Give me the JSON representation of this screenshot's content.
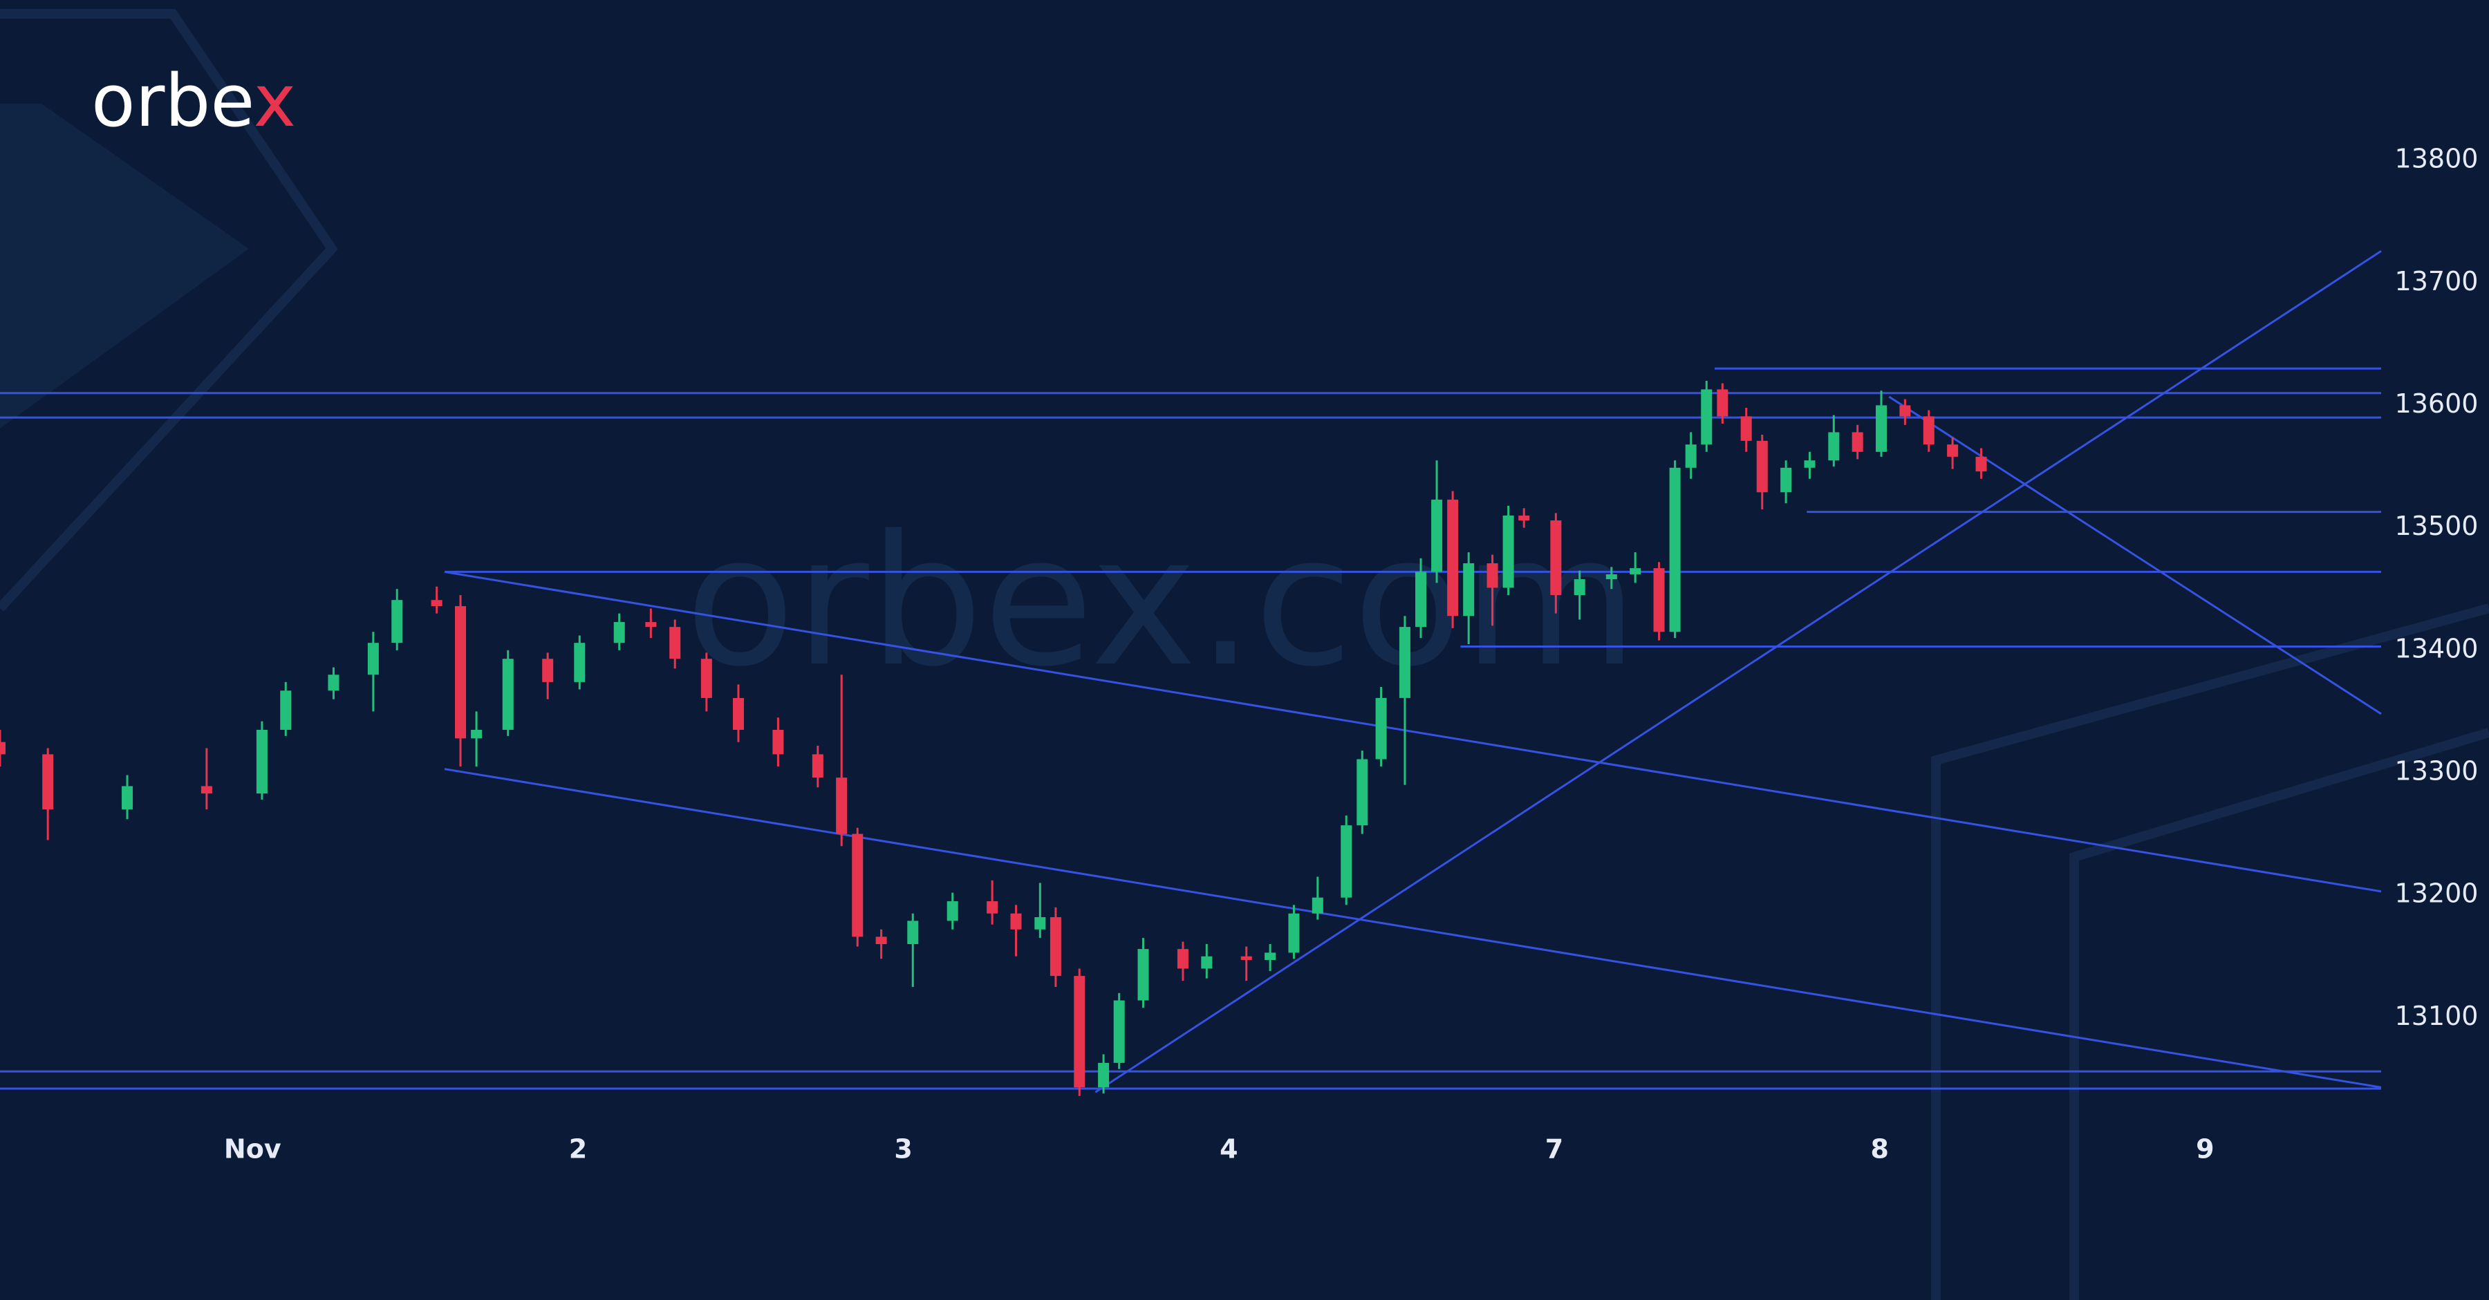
{
  "logo": {
    "text": "orbe",
    "accent": "x"
  },
  "watermark": "orbex.com",
  "chart_data": {
    "type": "candlestick",
    "x": [
      -0.776,
      -0.629,
      -0.385,
      -0.141,
      0.029,
      0.102,
      0.249,
      0.371,
      0.444,
      0.566,
      0.639,
      0.688,
      0.785,
      0.907,
      1.005,
      1.127,
      1.224,
      1.298,
      1.395,
      1.493,
      1.615,
      1.737,
      1.81,
      1.859,
      1.932,
      2.029,
      2.151,
      2.273,
      2.346,
      2.42,
      2.468,
      2.541,
      2.615,
      2.663,
      2.737,
      2.859,
      2.932,
      3.054,
      3.127,
      3.2,
      3.273,
      3.361,
      3.41,
      3.468,
      3.541,
      3.59,
      3.639,
      3.688,
      3.737,
      3.81,
      3.859,
      3.907,
      4.005,
      4.078,
      4.176,
      4.249,
      4.322,
      4.371,
      4.42,
      4.468,
      4.517,
      4.59,
      4.639,
      4.712,
      4.785,
      4.859,
      4.932,
      5.005,
      5.078,
      5.151,
      5.224,
      5.312
    ],
    "open": [
      13325,
      13315,
      13270,
      13289,
      13283,
      13335,
      13367,
      13380,
      13406,
      13441,
      13436,
      13328,
      13335,
      13393,
      13374,
      13406,
      13423,
      13419,
      13393,
      13361,
      13335,
      13315,
      13296,
      13250,
      13166,
      13160,
      13179,
      13195,
      13185,
      13172,
      13182,
      13134,
      13043,
      13063,
      13114,
      13156,
      13140,
      13150,
      13147,
      13153,
      13185,
      13198,
      13257,
      13311,
      13361,
      13419,
      13464,
      13523,
      13428,
      13471,
      13451,
      13510,
      13506,
      13445,
      13458,
      13462,
      13467,
      13415,
      13549,
      13568,
      13613,
      13591,
      13571,
      13529,
      13549,
      13555,
      13578,
      13562,
      13600,
      13591,
      13568,
      13558
    ],
    "high": [
      13335,
      13320,
      13298,
      13320,
      13342,
      13374,
      13386,
      13415,
      13450,
      13452,
      13445,
      13350,
      13400,
      13398,
      13412,
      13430,
      13434,
      13425,
      13398,
      13372,
      13345,
      13322,
      13380,
      13255,
      13172,
      13185,
      13202,
      13212,
      13192,
      13210,
      13190,
      13140,
      13070,
      13120,
      13165,
      13162,
      13160,
      13158,
      13160,
      13192,
      13215,
      13265,
      13318,
      13370,
      13428,
      13475,
      13555,
      13530,
      13480,
      13478,
      13518,
      13516,
      13512,
      13465,
      13468,
      13480,
      13472,
      13555,
      13578,
      13620,
      13618,
      13598,
      13576,
      13555,
      13562,
      13592,
      13584,
      13612,
      13605,
      13596,
      13574,
      13565
    ],
    "low": [
      13305,
      13245,
      13262,
      13270,
      13278,
      13330,
      13360,
      13350,
      13400,
      13430,
      13305,
      13305,
      13330,
      13360,
      13368,
      13400,
      13410,
      13385,
      13350,
      13325,
      13305,
      13288,
      13240,
      13158,
      13148,
      13125,
      13172,
      13176,
      13150,
      13165,
      13125,
      13036,
      13038,
      13058,
      13108,
      13130,
      13132,
      13130,
      13138,
      13148,
      13180,
      13192,
      13250,
      13305,
      13290,
      13410,
      13455,
      13418,
      13405,
      13420,
      13445,
      13500,
      13430,
      13425,
      13450,
      13455,
      13408,
      13410,
      13540,
      13562,
      13585,
      13562,
      13515,
      13520,
      13540,
      13550,
      13556,
      13558,
      13584,
      13562,
      13548,
      13540
    ],
    "close": [
      13315,
      13270,
      13289,
      13283,
      13335,
      13367,
      13380,
      13406,
      13441,
      13436,
      13328,
      13335,
      13393,
      13374,
      13406,
      13423,
      13419,
      13393,
      13361,
      13335,
      13315,
      13296,
      13250,
      13166,
      13160,
      13179,
      13195,
      13185,
      13172,
      13182,
      13134,
      13043,
      13063,
      13114,
      13156,
      13140,
      13150,
      13147,
      13153,
      13185,
      13198,
      13257,
      13311,
      13361,
      13419,
      13464,
      13523,
      13428,
      13471,
      13451,
      13510,
      13506,
      13445,
      13458,
      13462,
      13467,
      13415,
      13549,
      13568,
      13613,
      13591,
      13571,
      13529,
      13549,
      13555,
      13578,
      13562,
      13600,
      13591,
      13568,
      13558,
      13546
    ],
    "up_color": "#22c07a",
    "down_color": "#e8344e",
    "line_color": "#3552e0",
    "lines": [
      {
        "x": [
          -0.776,
          6.541
        ],
        "y": [
          13610,
          13610
        ]
      },
      {
        "x": [
          -0.776,
          6.541
        ],
        "y": [
          13590,
          13590
        ]
      },
      {
        "x": [
          4.493,
          6.541
        ],
        "y": [
          13630,
          13630
        ]
      },
      {
        "x": [
          4.776,
          6.541
        ],
        "y": [
          13513,
          13513
        ]
      },
      {
        "x": [
          0.59,
          6.541
        ],
        "y": [
          13464,
          13464
        ]
      },
      {
        "x": [
          3.712,
          6.541
        ],
        "y": [
          13403,
          13403
        ]
      },
      {
        "x": [
          -0.776,
          6.541
        ],
        "y": [
          13056,
          13056
        ]
      },
      {
        "x": [
          -0.776,
          6.541
        ],
        "y": [
          13042,
          13042
        ]
      },
      {
        "x": [
          0.59,
          6.541
        ],
        "y": [
          13464,
          13203
        ]
      },
      {
        "x": [
          0.59,
          6.541
        ],
        "y": [
          13303,
          13043
        ]
      },
      {
        "x": [
          2.59,
          6.541
        ],
        "y": [
          13039,
          13726
        ]
      },
      {
        "x": [
          5.029,
          6.541
        ],
        "y": [
          13607,
          13348
        ]
      }
    ],
    "xlim": [
      -0.776,
      6.541
    ],
    "ylim": [
      13024,
      13931
    ],
    "xticks": [
      {
        "value": 0,
        "label": "Nov"
      },
      {
        "value": 1,
        "label": "2"
      },
      {
        "value": 2,
        "label": "3"
      },
      {
        "value": 3,
        "label": "4"
      },
      {
        "value": 4,
        "label": "7"
      },
      {
        "value": 5,
        "label": "8"
      },
      {
        "value": 6,
        "label": "9"
      }
    ],
    "yticks": [
      13100,
      13200,
      13300,
      13400,
      13500,
      13600,
      13700,
      13800
    ]
  }
}
